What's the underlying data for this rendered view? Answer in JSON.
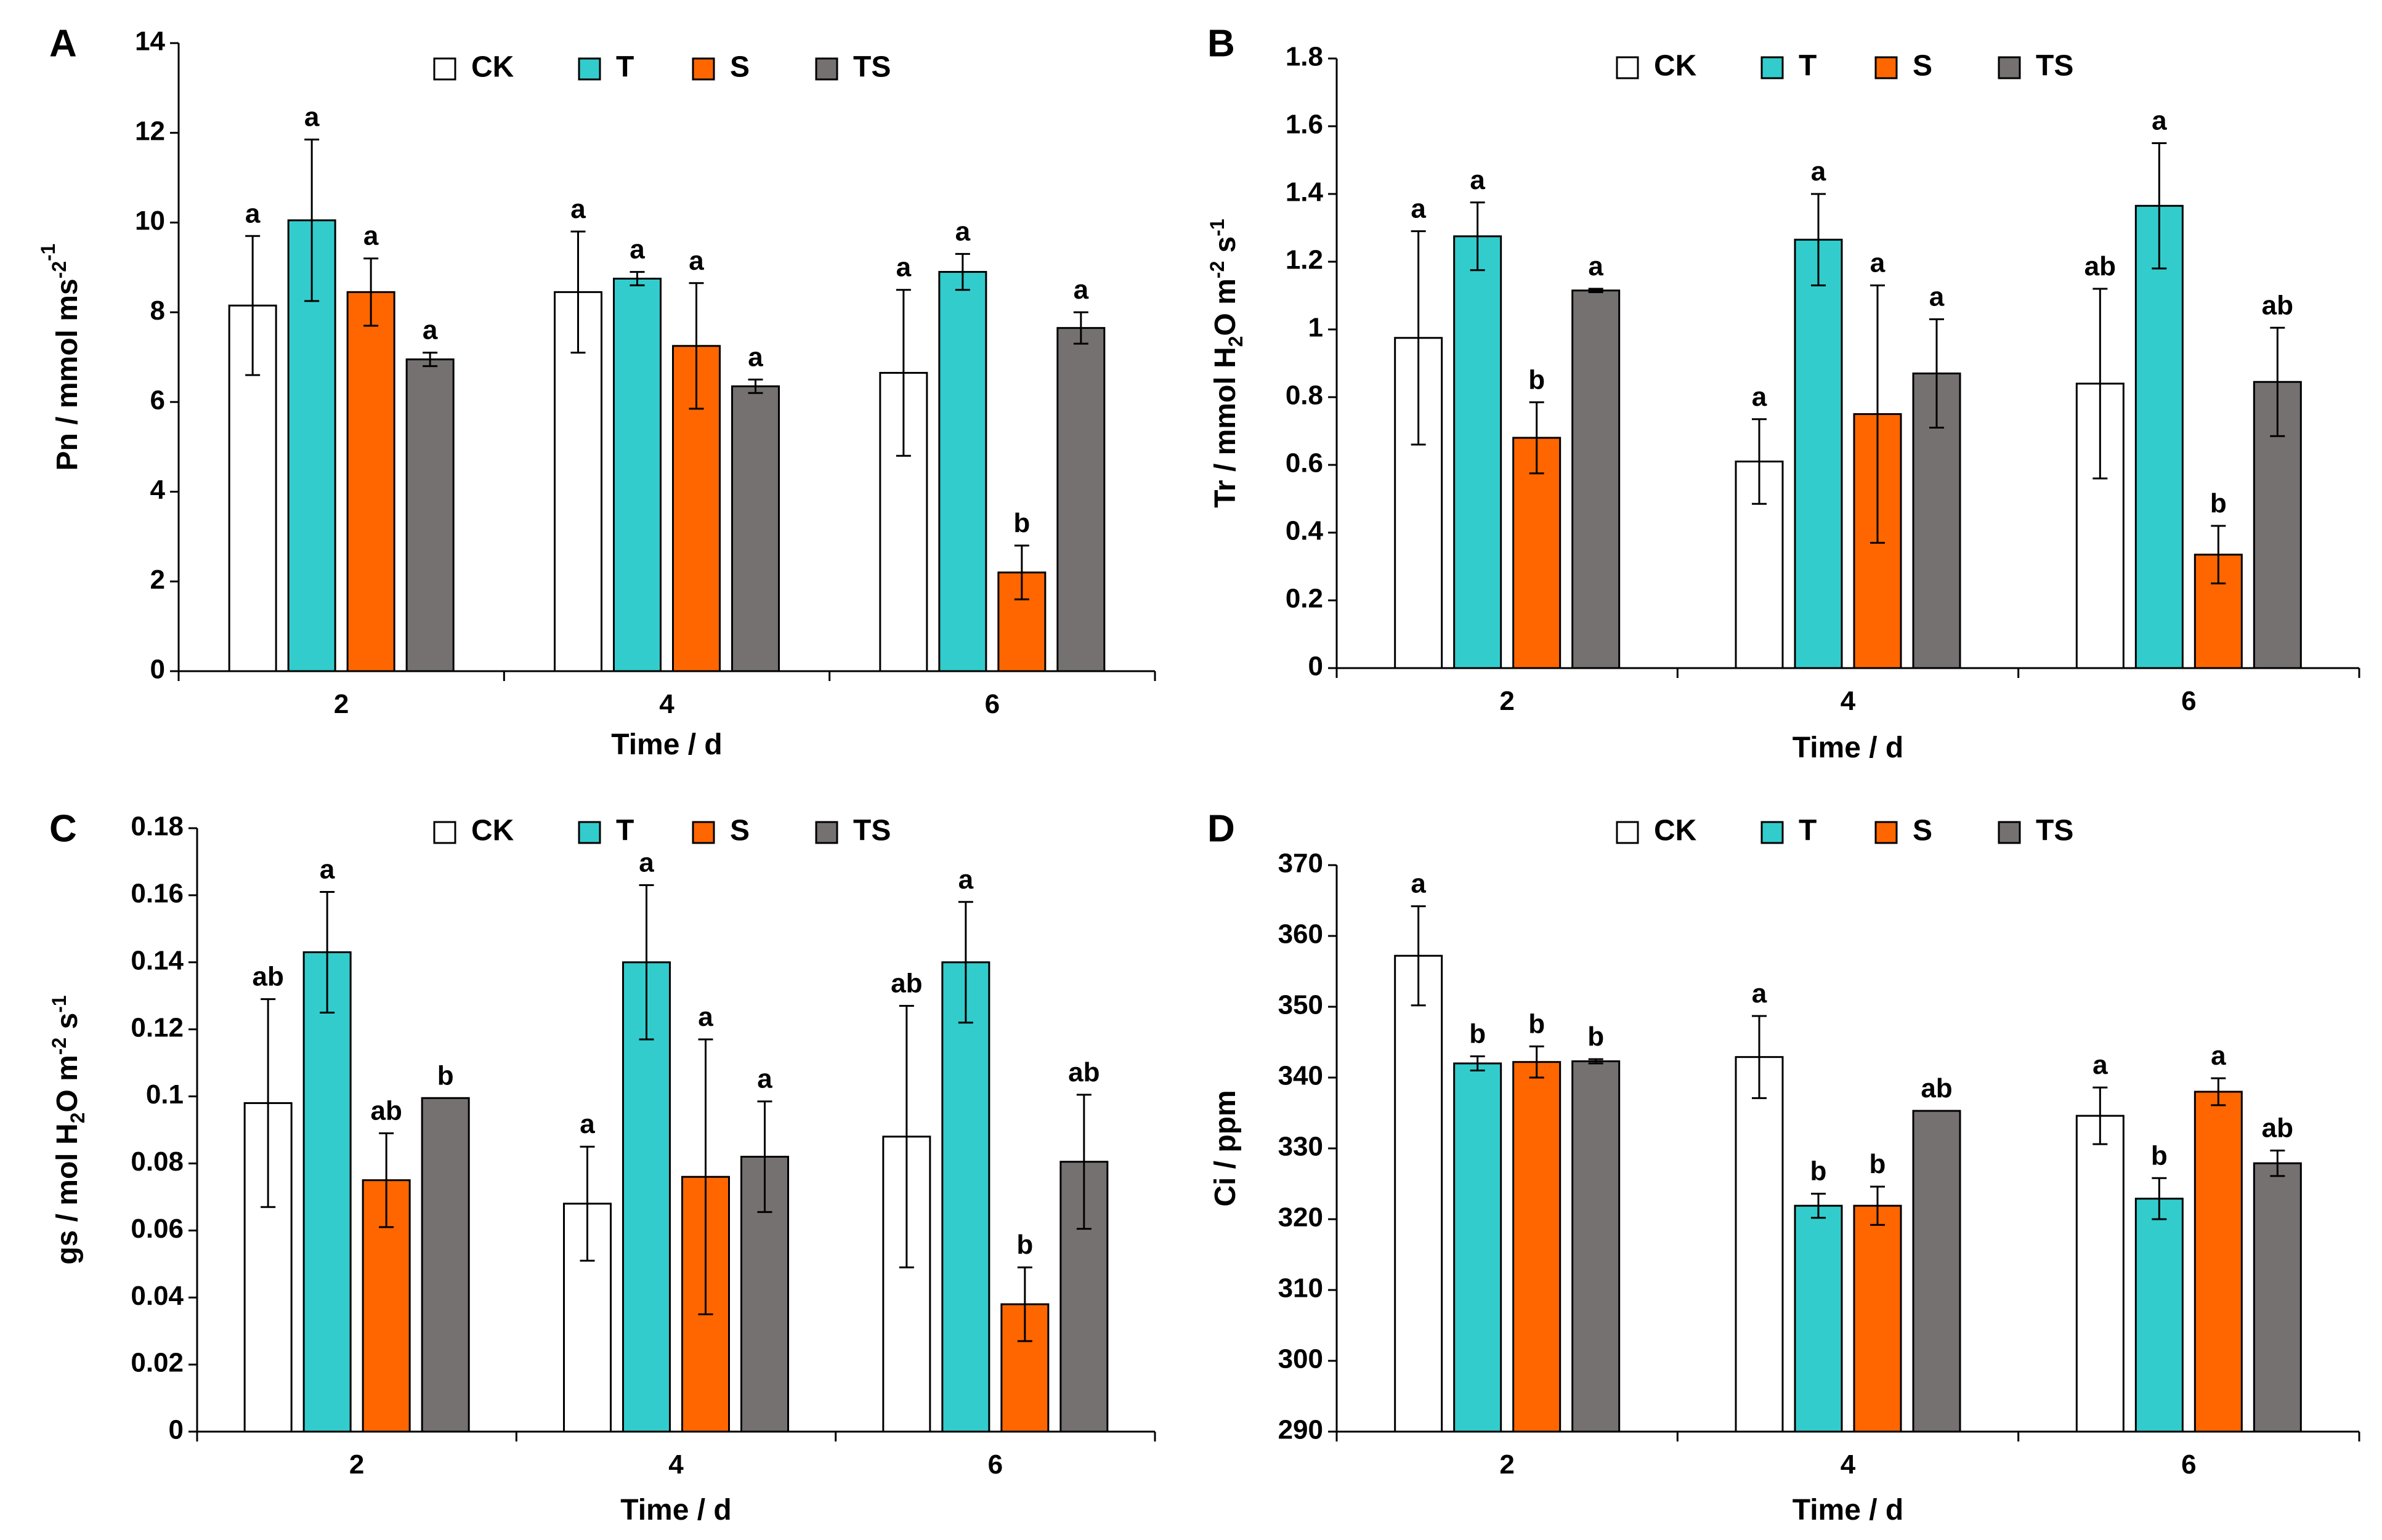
{
  "figure": {
    "description_domain": "Chart"
  },
  "chart_data": [
    {
      "panel": "A",
      "type": "bar",
      "categories": [
        "2",
        "4",
        "6"
      ],
      "xlabel": "Time / d",
      "ylabel": "Pn / mmol m-2s-1",
      "ylabel_parts": {
        "pre": "Pn / mmol m",
        "sup1": "-2",
        "mid": "s",
        "sup2": "-1"
      },
      "ylim": [
        0,
        14
      ],
      "yticks": [
        0,
        2,
        4,
        6,
        8,
        10,
        12,
        14
      ],
      "ytick_labels": [
        "0",
        "2",
        "4",
        "6",
        "8",
        "10",
        "12",
        "14"
      ],
      "legend": [
        "CK",
        "T",
        "S",
        "TS"
      ],
      "series": [
        {
          "name": "CK",
          "color": "#ffffff",
          "values": [
            8.15,
            8.45,
            6.65
          ],
          "errors": [
            1.55,
            1.35,
            1.85
          ],
          "letters": [
            "a",
            "a",
            "a"
          ]
        },
        {
          "name": "T",
          "color": "#33cccc",
          "values": [
            10.05,
            8.75,
            8.9
          ],
          "errors": [
            1.8,
            0.15,
            0.4
          ],
          "letters": [
            "a",
            "a",
            "a"
          ]
        },
        {
          "name": "S",
          "color": "#ff6600",
          "values": [
            8.45,
            7.25,
            2.2
          ],
          "errors": [
            0.75,
            1.4,
            0.6
          ],
          "letters": [
            "a",
            "a",
            "b"
          ]
        },
        {
          "name": "TS",
          "color": "#767171",
          "values": [
            6.95,
            6.35,
            7.65
          ],
          "errors": [
            0.15,
            0.15,
            0.35
          ],
          "letters": [
            "a",
            "a",
            "a"
          ]
        }
      ]
    },
    {
      "panel": "B",
      "type": "bar",
      "categories": [
        "2",
        "4",
        "6"
      ],
      "xlabel": "Time / d",
      "ylabel": "Tr / mmol H2O m-2 s-1",
      "ylabel_parts": {
        "pre": "Tr / mmol H",
        "sub": "2",
        "mid": "O m",
        "sup1": "-2",
        "mid2": " s",
        "sup2": "-1"
      },
      "ylim": [
        0,
        1.8
      ],
      "yticks": [
        0,
        0.2,
        0.4,
        0.6,
        0.8,
        1.0,
        1.2,
        1.4,
        1.6,
        1.8
      ],
      "ytick_labels": [
        "0",
        "0.2",
        "0.4",
        "0.6",
        "0.8",
        "1",
        "1.2",
        "1.4",
        "1.6",
        "1.8"
      ],
      "legend": [
        "CK",
        "T",
        "S",
        "TS"
      ],
      "series": [
        {
          "name": "CK",
          "color": "#ffffff",
          "values": [
            0.975,
            0.61,
            0.84
          ],
          "errors": [
            0.315,
            0.125,
            0.28
          ],
          "letters": [
            "a",
            "a",
            "ab"
          ]
        },
        {
          "name": "T",
          "color": "#33cccc",
          "values": [
            1.275,
            1.265,
            1.365
          ],
          "errors": [
            0.1,
            0.135,
            0.185
          ],
          "letters": [
            "a",
            "a",
            "a"
          ]
        },
        {
          "name": "S",
          "color": "#ff6600",
          "values": [
            0.68,
            0.75,
            0.335
          ],
          "errors": [
            0.105,
            0.38,
            0.085
          ],
          "letters": [
            "b",
            "a",
            "b"
          ]
        },
        {
          "name": "TS",
          "color": "#767171",
          "values": [
            1.115,
            0.87,
            0.845
          ],
          "errors": [
            0.005,
            0.16,
            0.16
          ],
          "letters": [
            "a",
            "a",
            "ab"
          ]
        }
      ]
    },
    {
      "panel": "C",
      "type": "bar",
      "categories": [
        "2",
        "4",
        "6"
      ],
      "xlabel": "Time / d",
      "ylabel": "gs / mol H2O m-2 s-1",
      "ylabel_parts": {
        "pre": "gs / mol H",
        "sub": "2",
        "mid": "O m",
        "sup1": "-2",
        "mid2": " s",
        "sup2": "-1"
      },
      "ylim": [
        0,
        0.18
      ],
      "yticks": [
        0,
        0.02,
        0.04,
        0.06,
        0.08,
        0.1,
        0.12,
        0.14,
        0.16,
        0.18
      ],
      "ytick_labels": [
        "0",
        "0.02",
        "0.04",
        "0.06",
        "0.08",
        "0.1",
        "0.12",
        "0.14",
        "0.16",
        "0.18"
      ],
      "legend": [
        "CK",
        "T",
        "S",
        "TS"
      ],
      "series": [
        {
          "name": "CK",
          "color": "#ffffff",
          "values": [
            0.098,
            0.068,
            0.088
          ],
          "errors": [
            0.031,
            0.017,
            0.039
          ],
          "letters": [
            "ab",
            "a",
            "ab"
          ]
        },
        {
          "name": "T",
          "color": "#33cccc",
          "values": [
            0.143,
            0.14,
            0.14
          ],
          "errors": [
            0.018,
            0.023,
            0.018
          ],
          "letters": [
            "a",
            "a",
            "a"
          ]
        },
        {
          "name": "S",
          "color": "#ff6600",
          "values": [
            0.075,
            0.076,
            0.038
          ],
          "errors": [
            0.014,
            0.041,
            0.011
          ],
          "letters": [
            "ab",
            "a",
            "b"
          ]
        },
        {
          "name": "TS",
          "color": "#767171",
          "values": [
            0.0995,
            0.082,
            0.0805
          ],
          "errors": [
            0,
            0.0165,
            0.02
          ],
          "letters": [
            "b",
            "a",
            "ab"
          ]
        }
      ]
    },
    {
      "panel": "D",
      "type": "bar",
      "categories": [
        "2",
        "4",
        "6"
      ],
      "xlabel": "Time / d",
      "ylabel": "Ci / ppm",
      "ylabel_parts": {
        "pre": "Ci / ppm"
      },
      "ylim": [
        290,
        370
      ],
      "yticks": [
        290,
        300,
        310,
        320,
        330,
        340,
        350,
        360,
        370
      ],
      "ytick_labels": [
        "290",
        "300",
        "310",
        "320",
        "330",
        "340",
        "350",
        "360",
        "370"
      ],
      "legend": [
        "CK",
        "T",
        "S",
        "TS"
      ],
      "series": [
        {
          "name": "CK",
          "color": "#ffffff",
          "values": [
            357.2,
            342.9,
            334.6
          ],
          "errors": [
            7.0,
            5.8,
            4.0
          ],
          "letters": [
            "a",
            "a",
            "a"
          ]
        },
        {
          "name": "T",
          "color": "#33cccc",
          "values": [
            342.0,
            321.9,
            322.9
          ],
          "errors": [
            1.0,
            1.7,
            2.9
          ],
          "letters": [
            "b",
            "b",
            "b"
          ]
        },
        {
          "name": "S",
          "color": "#ff6600",
          "values": [
            342.2,
            321.9,
            338.0
          ],
          "errors": [
            2.2,
            2.7,
            1.9
          ],
          "letters": [
            "b",
            "b",
            "a"
          ]
        },
        {
          "name": "TS",
          "color": "#767171",
          "values": [
            342.3,
            335.3,
            327.9
          ],
          "errors": [
            0.3,
            0,
            1.8
          ],
          "letters": [
            "b",
            "ab",
            "ab"
          ]
        }
      ]
    }
  ]
}
